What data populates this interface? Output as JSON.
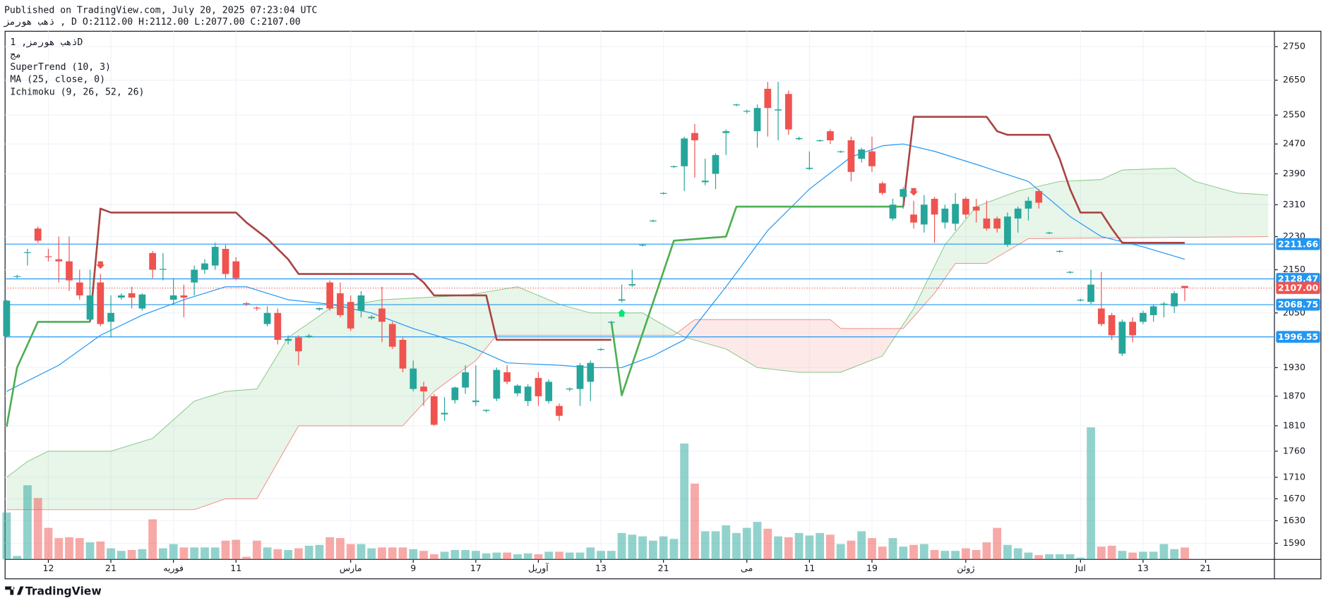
{
  "chart_data": {
    "type": "candlestick",
    "published": "Published on TradingView.com, July 20, 2025 07:23:04 UTC",
    "ohlc_line": "ذهب هورمز , D O:2112.00 H:2112.00 L:2077.00 C:2107.00",
    "legend": [
      "ذهب هورمز, 1D",
      "مج",
      "SuperTrend (10, 3)",
      "MA (25, close, 0)",
      "Ichimoku (9, 26, 52, 26)"
    ],
    "brand": "TradingView",
    "log_scale": true,
    "grid": true,
    "up_color": "#26a69a",
    "down_color": "#ef5350",
    "xlim": [
      -0.15,
      121.6
    ],
    "ylim": [
      1562,
      2797
    ],
    "yticks": [
      2750,
      2650,
      2550,
      2470,
      2390,
      2310,
      2230,
      2150,
      2050,
      1930,
      1870,
      1810,
      1760,
      1710,
      1670,
      1630,
      1590
    ],
    "xticks": [
      {
        "value": 4,
        "label": "12"
      },
      {
        "value": 10,
        "label": "21"
      },
      {
        "value": 16,
        "label": "فوریه"
      },
      {
        "value": 22,
        "label": "11"
      },
      {
        "value": 33,
        "label": "مارس"
      },
      {
        "value": 39,
        "label": "9"
      },
      {
        "value": 45,
        "label": "17"
      },
      {
        "value": 51,
        "label": "آوریل"
      },
      {
        "value": 57,
        "label": "13"
      },
      {
        "value": 63,
        "label": "21"
      },
      {
        "value": 71,
        "label": "می"
      },
      {
        "value": 77,
        "label": "11"
      },
      {
        "value": 83,
        "label": "19"
      },
      {
        "value": 92,
        "label": "ژوئن"
      },
      {
        "value": 103,
        "label": "Jul"
      },
      {
        "value": 109,
        "label": "13"
      },
      {
        "value": 115,
        "label": "21"
      }
    ],
    "candles": {
      "open": [
        1998,
        2133,
        2190,
        2250,
        2182,
        2175,
        2170,
        2120,
        2035,
        2120,
        2030,
        2085,
        2095,
        2060,
        2190,
        2150,
        2080,
        2090,
        2120,
        2150,
        2160,
        2200,
        2170,
        2072,
        2062,
        2025,
        2050,
        1988,
        1995,
        1996,
        2058,
        2120,
        2095,
        2075,
        2055,
        2038,
        2060,
        2025,
        1990,
        1885,
        1890,
        1870,
        1833,
        1862,
        1888,
        1858,
        1840,
        1865,
        1920,
        1876,
        1860,
        1908,
        1860,
        1850,
        1884,
        1885,
        1900,
        1968,
        2028,
        2078,
        2113,
        2208,
        2268,
        2338,
        2408,
        2410,
        2500,
        2368,
        2390,
        2500,
        2578,
        2560,
        2505,
        2625,
        2563,
        2610,
        2483,
        2403,
        2478,
        2505,
        2448,
        2480,
        2430,
        2450,
        2365,
        2275,
        2330,
        2285,
        2260,
        2325,
        2265,
        2262,
        2325,
        2305,
        2275,
        2275,
        2210,
        2275,
        2300,
        2345,
        2238,
        2193,
        2143,
        2078,
        2075,
        2060,
        2045,
        1960,
        2030,
        2030,
        2045,
        2068,
        2065,
        2112
      ],
      "high": [
        2080,
        2138,
        2200,
        2255,
        2200,
        2230,
        2230,
        2150,
        2150,
        2140,
        2090,
        2095,
        2110,
        2095,
        2195,
        2190,
        2130,
        2115,
        2160,
        2175,
        2215,
        2210,
        2180,
        2075,
        2065,
        2065,
        2060,
        2000,
        2000,
        2003,
        2062,
        2125,
        2120,
        2090,
        2100,
        2045,
        2110,
        2030,
        1995,
        1945,
        1900,
        1875,
        1868,
        1890,
        1935,
        1935,
        1843,
        1930,
        1935,
        1895,
        1895,
        1920,
        1905,
        1855,
        1888,
        1940,
        1945,
        1972,
        2032,
        2115,
        2150,
        2212,
        2272,
        2342,
        2412,
        2490,
        2525,
        2430,
        2445,
        2510,
        2582,
        2565,
        2580,
        2645,
        2645,
        2620,
        2490,
        2450,
        2482,
        2510,
        2452,
        2490,
        2460,
        2490,
        2370,
        2325,
        2355,
        2320,
        2335,
        2330,
        2310,
        2340,
        2330,
        2325,
        2320,
        2280,
        2290,
        2305,
        2330,
        2350,
        2242,
        2197,
        2147,
        2082,
        2150,
        2145,
        2050,
        2035,
        2040,
        2055,
        2070,
        2075,
        2100,
        2112
      ],
      "low": [
        1995,
        2130,
        2160,
        2215,
        2170,
        2120,
        2100,
        2080,
        2030,
        2020,
        1995,
        2080,
        2060,
        2055,
        2130,
        2125,
        2070,
        2040,
        2090,
        2140,
        2150,
        2130,
        2125,
        2066,
        2055,
        2020,
        1980,
        1980,
        1935,
        1994,
        2055,
        2055,
        2040,
        2010,
        2040,
        2035,
        1985,
        1970,
        1920,
        1880,
        1850,
        1810,
        1820,
        1855,
        1875,
        1850,
        1837,
        1860,
        1895,
        1870,
        1850,
        1850,
        1855,
        1820,
        1880,
        1850,
        1860,
        1966,
        2025,
        2074,
        2110,
        2206,
        2266,
        2336,
        2406,
        2345,
        2380,
        2360,
        2350,
        2440,
        2575,
        2555,
        2460,
        2490,
        2480,
        2495,
        2480,
        2400,
        2476,
        2470,
        2446,
        2370,
        2420,
        2395,
        2335,
        2270,
        2300,
        2250,
        2240,
        2215,
        2250,
        2245,
        2275,
        2265,
        2245,
        2240,
        2205,
        2240,
        2270,
        2300,
        2236,
        2191,
        2141,
        2076,
        2070,
        2020,
        1990,
        1955,
        1985,
        2025,
        2030,
        2040,
        2050,
        2077
      ],
      "close": [
        2078,
        2135,
        2192,
        2220,
        2180,
        2170,
        2125,
        2090,
        2090,
        2025,
        2050,
        2090,
        2085,
        2092,
        2150,
        2152,
        2090,
        2085,
        2150,
        2165,
        2205,
        2140,
        2130,
        2070,
        2060,
        2050,
        1990,
        1992,
        1965,
        1999,
        2061,
        2060,
        2045,
        2015,
        2090,
        2041,
        2030,
        1975,
        1928,
        1928,
        1880,
        1812,
        1836,
        1888,
        1920,
        1861,
        1842,
        1925,
        1900,
        1892,
        1890,
        1870,
        1900,
        1830,
        1886,
        1935,
        1940,
        1970,
        2030,
        2081,
        2116,
        2210,
        2270,
        2340,
        2410,
        2485,
        2480,
        2372,
        2440,
        2505,
        2580,
        2562,
        2570,
        2570,
        2566,
        2510,
        2486,
        2406,
        2480,
        2480,
        2450,
        2395,
        2455,
        2410,
        2340,
        2310,
        2350,
        2265,
        2310,
        2285,
        2300,
        2312,
        2285,
        2295,
        2250,
        2250,
        2280,
        2300,
        2320,
        2315,
        2240,
        2195,
        2145,
        2080,
        2115,
        2025,
        2000,
        2030,
        2000,
        2050,
        2065,
        2071,
        2095,
        2107
      ]
    },
    "volume": [
      55,
      4,
      87,
      72,
      37,
      25,
      26,
      25,
      20,
      21,
      13,
      10,
      11,
      12,
      47,
      13,
      18,
      14,
      14,
      14,
      14,
      22,
      23,
      3,
      22,
      14,
      12,
      11,
      13,
      16,
      17,
      26,
      25,
      18,
      18,
      13,
      14,
      14,
      14,
      12,
      10,
      6,
      9,
      11,
      11,
      10,
      7,
      8,
      8,
      6,
      7,
      6,
      9,
      9,
      8,
      8,
      14,
      10,
      10,
      31,
      29,
      27,
      22,
      27,
      24,
      136,
      89,
      33,
      33,
      40,
      31,
      37,
      44,
      36,
      27,
      26,
      31,
      28,
      31,
      29,
      18,
      22,
      33,
      25,
      15,
      25,
      15,
      17,
      18,
      11,
      10,
      10,
      13,
      11,
      20,
      37,
      17,
      13,
      8,
      5,
      6,
      6,
      6,
      2,
      155,
      15,
      16,
      10,
      8,
      9,
      9,
      18,
      12,
      14
    ],
    "supertrend": [
      {
        "color": "#4caf50",
        "x": [
          0,
          1,
          3,
          8,
          null,
          58,
          59,
          64,
          69,
          70,
          86
        ],
        "values": [
          1808,
          1930,
          2030,
          2030,
          null,
          2030,
          1872,
          2220,
          2230,
          2305,
          2305
        ]
      },
      {
        "color": "#a94442",
        "x": [
          8,
          9,
          10,
          22,
          23,
          25,
          27,
          28,
          39,
          40,
          41,
          46,
          47,
          58,
          null,
          86,
          87,
          94,
          95,
          96,
          100,
          101,
          102,
          103,
          105,
          106,
          107,
          113
        ],
        "values": [
          2030,
          2300,
          2290,
          2290,
          2265,
          2225,
          2175,
          2140,
          2140,
          2120,
          2090,
          2090,
          1990,
          1990,
          null,
          2305,
          2545,
          2545,
          2505,
          2495,
          2495,
          2430,
          2350,
          2290,
          2290,
          2250,
          2215,
          2215
        ]
      }
    ],
    "sell_signals": [
      9,
      87
    ],
    "buy_signals": [
      59
    ],
    "ma": {
      "color": "#2196f3",
      "x": [
        0,
        5,
        9,
        13,
        17,
        21,
        23,
        27,
        31,
        35,
        39,
        44,
        48,
        53,
        56,
        59,
        62,
        65,
        69,
        73,
        77,
        81,
        84,
        86,
        89,
        93,
        98,
        102,
        105,
        109,
        113
      ],
      "values": [
        1880,
        1935,
        2000,
        2045,
        2080,
        2110,
        2110,
        2080,
        2070,
        2050,
        2015,
        1980,
        1940,
        1935,
        1930,
        1930,
        1955,
        1990,
        2110,
        2245,
        2350,
        2435,
        2465,
        2470,
        2450,
        2415,
        2370,
        2280,
        2230,
        2205,
        2175
      ]
    },
    "ichimoku": {
      "span_a": {
        "color": "#81c784",
        "x": [
          0,
          2,
          4,
          10,
          14,
          18,
          21,
          24,
          27,
          31,
          36,
          44,
          49,
          53,
          56,
          61,
          65,
          69,
          72,
          76,
          80,
          84,
          87,
          90,
          93,
          97,
          101,
          105,
          107,
          112,
          114,
          118,
          121
        ],
        "values": [
          1710,
          1740,
          1760,
          1760,
          1785,
          1860,
          1880,
          1885,
          1995,
          2060,
          2080,
          2090,
          2110,
          2070,
          2050,
          2050,
          1996,
          1970,
          1930,
          1920,
          1920,
          1955,
          2060,
          2210,
          2305,
          2345,
          2370,
          2375,
          2400,
          2405,
          2370,
          2340,
          2335
        ]
      },
      "span_b": {
        "color": "#f28b82",
        "x": [
          0,
          18,
          21,
          24,
          28,
          38,
          41,
          45,
          47,
          64,
          66,
          79,
          80,
          86,
          89,
          91,
          94,
          98,
          121
        ],
        "values": [
          1650,
          1650,
          1670,
          1670,
          1810,
          1810,
          1880,
          1945,
          2000,
          2000,
          2035,
          2035,
          2015,
          2015,
          2095,
          2165,
          2165,
          2225,
          2230
        ]
      }
    },
    "price_lines": [
      {
        "value": 2211.66,
        "color": "#2196f3"
      },
      {
        "value": 2128.47,
        "color": "#2196f3"
      },
      {
        "value": 2107,
        "label": "2107.00",
        "color": "#ef5350",
        "dashed": true
      },
      {
        "value": 2068.75,
        "color": "#2196f3"
      },
      {
        "value": 1996.55,
        "color": "#2196f3"
      }
    ]
  }
}
